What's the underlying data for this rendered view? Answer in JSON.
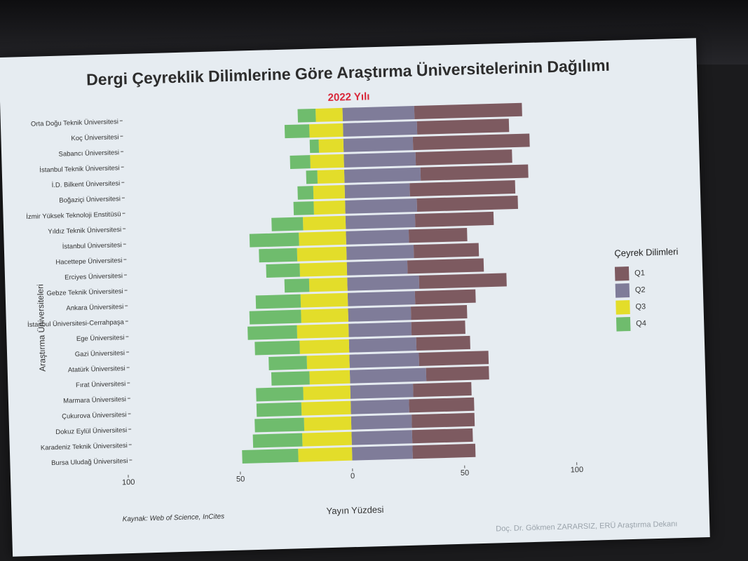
{
  "title": "Dergi Çeyreklik Dilimlerine Göre Araştırma Üniversitelerinin Dağılımı",
  "subtitle": "2022 Yılı",
  "source": "Kaynak: Web of Science, InCites",
  "credit": "Doç. Dr. Gökmen ZARARSIZ, ERÜ Araştırma Dekanı",
  "legend": {
    "title": "Çeyrek Dilimleri",
    "items": [
      {
        "label": "Q1",
        "color": "#7d5a60"
      },
      {
        "label": "Q2",
        "color": "#7f7c99"
      },
      {
        "label": "Q3",
        "color": "#e3dd2a"
      },
      {
        "label": "Q4",
        "color": "#6fbc6d"
      }
    ]
  },
  "chart_data": {
    "type": "bar",
    "orientation": "horizontal-diverging",
    "title": "Dergi Çeyreklik Dilimlerine Göre Araştırma Üniversitelerinin Dağılımı",
    "subtitle": "2022 Yılı",
    "xlabel": "Yayın Yüzdesi",
    "ylabel": "Araştırma Üniversiteleri",
    "xticks": [
      "100",
      "50",
      "0",
      "50",
      "100"
    ],
    "xlim": [
      -100,
      100
    ],
    "legend_position": "right",
    "categories": [
      "Orta Doğu Teknik Üniversitesi",
      "Koç Üniversitesi",
      "Sabancı Üniversitesi",
      "İstanbul Teknik Üniversitesi",
      "İ.D. Bilkent Üniversitesi",
      "Boğaziçi Üniversitesi",
      "İzmir Yüksek Teknoloji Enstitüsü",
      "Yıldız Teknik Üniversitesi",
      "İstanbul Üniversitesi",
      "Hacettepe Üniversitesi",
      "Erciyes Üniversitesi",
      "Gebze Teknik Üniversitesi",
      "Ankara Üniversitesi",
      "İstanbul Üniversitesi-Cerrahpaşa",
      "Ege Üniversitesi",
      "Gazi Üniversitesi",
      "Atatürk Üniversitesi",
      "Fırat Üniversitesi",
      "Marmara Üniversitesi",
      "Çukurova Üniversitesi",
      "Dokuz Eylül Üniversitesi",
      "Karadeniz Teknik Üniversitesi",
      "Bursa Uludağ Üniversitesi"
    ],
    "series": [
      {
        "name": "Q1",
        "side": "positive",
        "values": [
          48,
          41,
          52,
          43,
          48,
          47,
          45,
          35,
          26,
          29,
          34,
          39,
          27,
          25,
          24,
          24,
          31,
          28,
          26,
          29,
          28,
          27,
          28
        ]
      },
      {
        "name": "Q2",
        "side": "positive",
        "values": [
          32,
          33,
          31,
          32,
          34,
          29,
          32,
          31,
          28,
          30,
          27,
          32,
          30,
          28,
          28,
          30,
          31,
          34,
          28,
          26,
          27,
          27,
          27
        ]
      },
      {
        "name": "Q3",
        "side": "negative",
        "values": [
          12,
          15,
          11,
          15,
          12,
          14,
          14,
          19,
          21,
          22,
          21,
          17,
          21,
          21,
          23,
          22,
          19,
          18,
          21,
          22,
          21,
          22,
          24
        ]
      },
      {
        "name": "Q4",
        "side": "negative",
        "values": [
          8,
          11,
          4,
          9,
          5,
          7,
          9,
          14,
          22,
          17,
          15,
          11,
          20,
          23,
          22,
          20,
          17,
          17,
          21,
          20,
          22,
          22,
          25
        ]
      }
    ]
  }
}
